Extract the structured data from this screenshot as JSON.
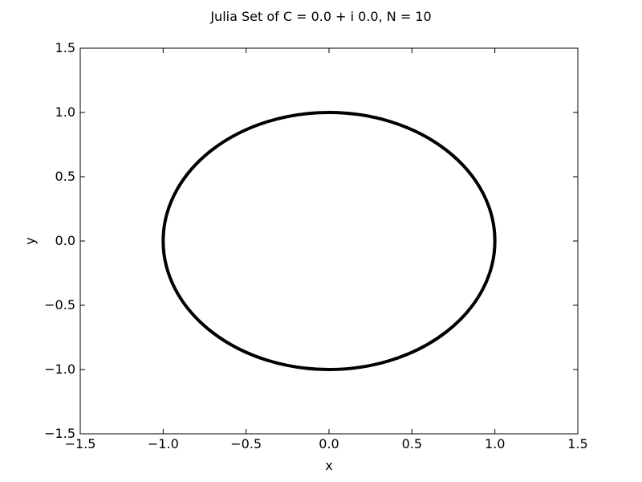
{
  "chart_data": {
    "type": "line",
    "title": "Julia Set of C = 0.0 + i 0.0, N = 10",
    "xlabel": "x",
    "ylabel": "y",
    "xlim": [
      -1.5,
      1.5
    ],
    "ylim": [
      -1.5,
      1.5
    ],
    "xticks": [
      -1.5,
      -1.0,
      -0.5,
      0.0,
      0.5,
      1.0,
      1.5
    ],
    "yticks": [
      -1.5,
      -1.0,
      -0.5,
      0.0,
      0.5,
      1.0,
      1.5
    ],
    "xtick_labels": [
      "−1.5",
      "−1.0",
      "−0.5",
      "0.0",
      "0.5",
      "1.0",
      "1.5"
    ],
    "ytick_labels": [
      "−1.5",
      "−1.0",
      "−0.5",
      "0.0",
      "0.5",
      "1.0",
      "1.5"
    ],
    "grid": false,
    "series": [
      {
        "shape": "circle",
        "center": [
          0.0,
          0.0
        ],
        "radius": 1.0,
        "color": "#000000"
      }
    ]
  }
}
